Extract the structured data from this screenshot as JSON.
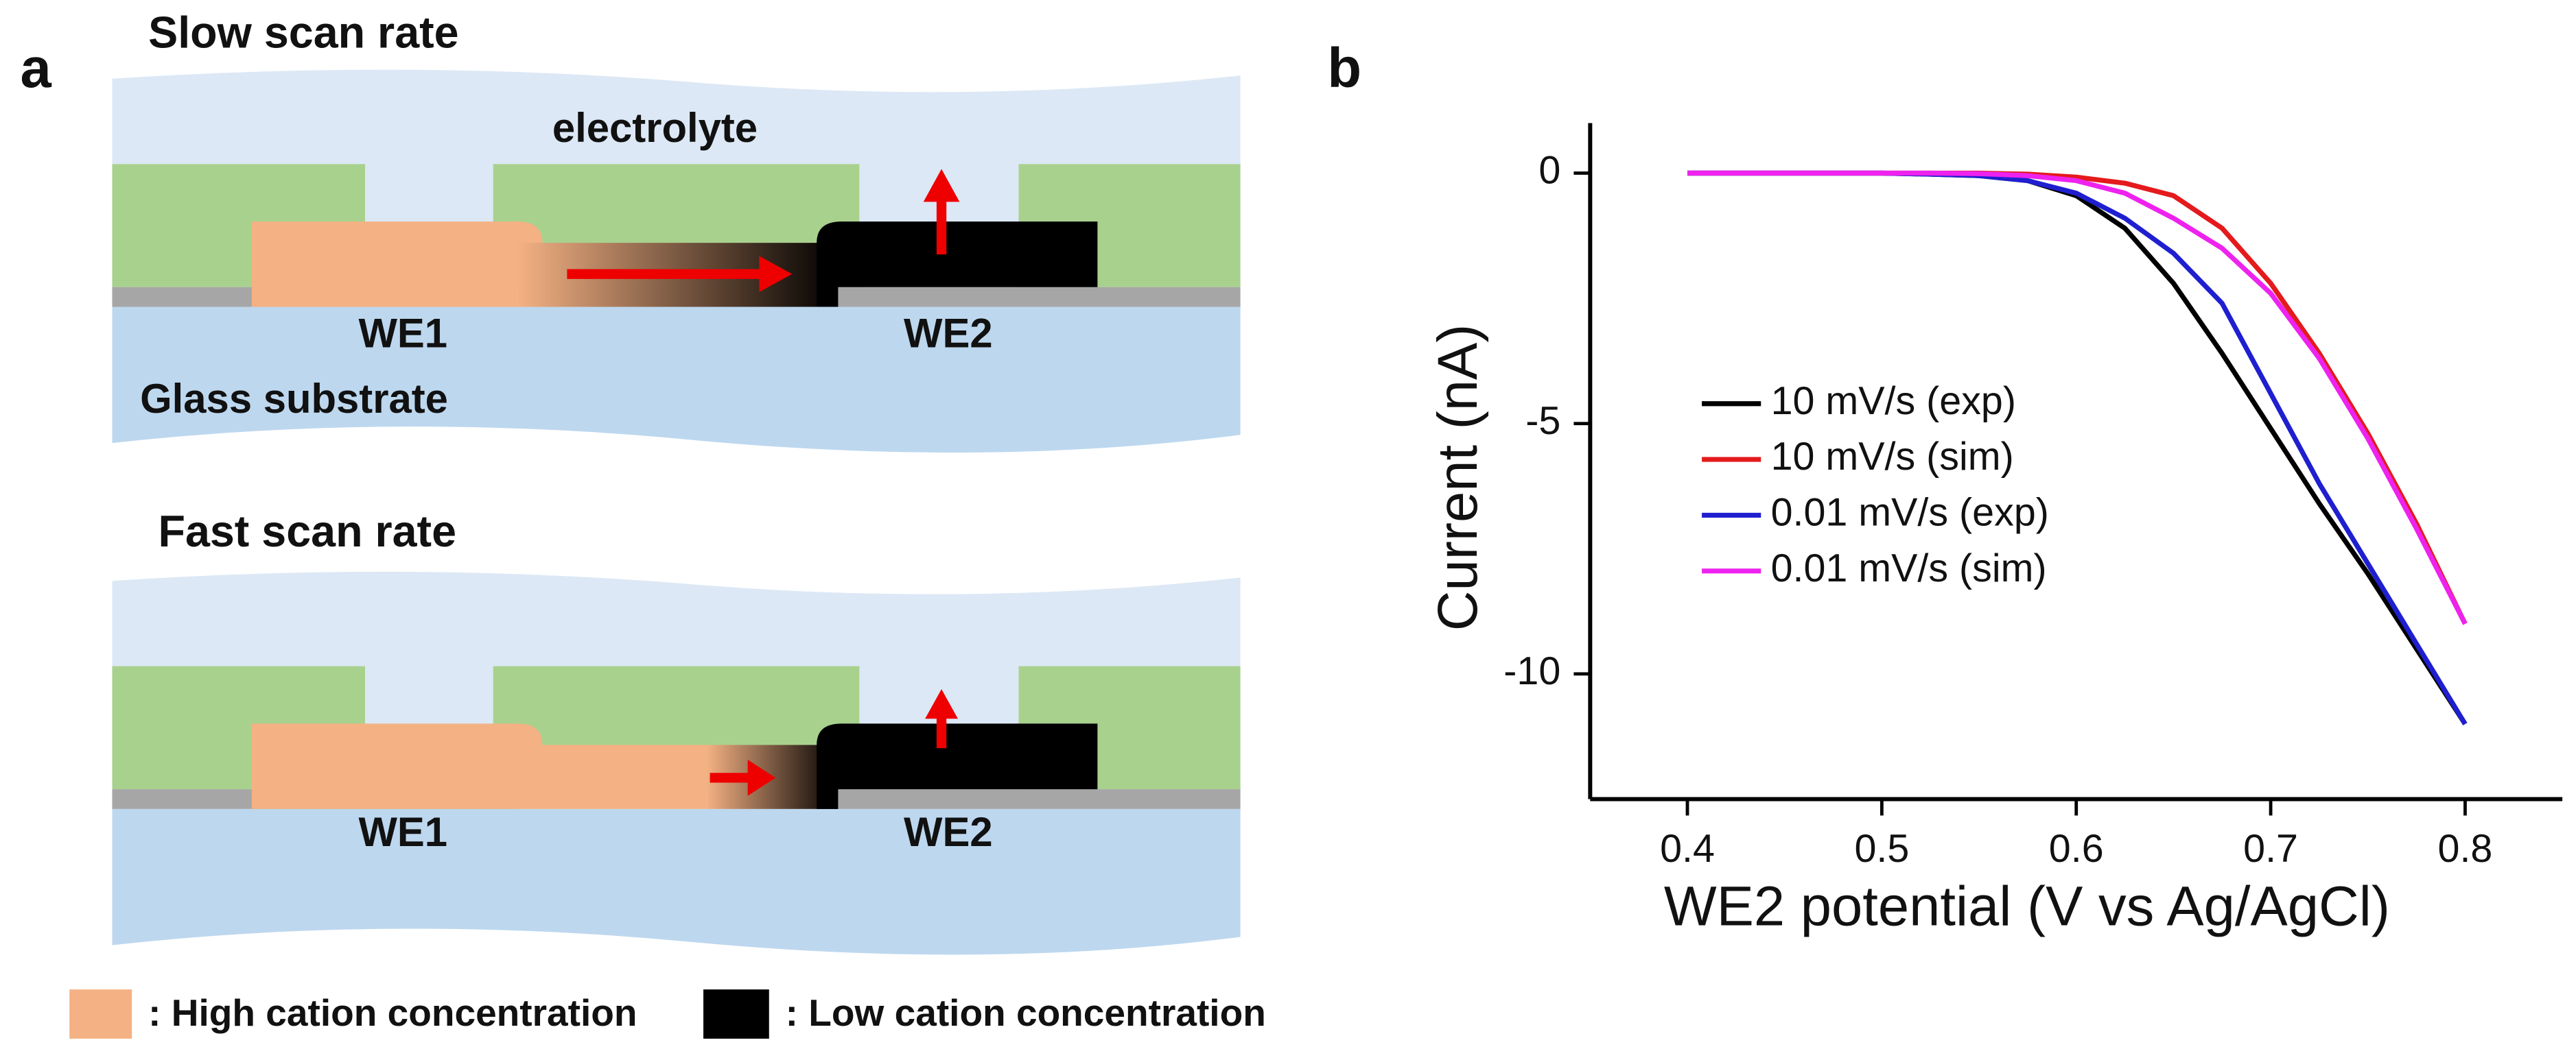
{
  "panel_a": {
    "label": "a",
    "top": {
      "title": "Slow scan rate",
      "electrolyte": "electrolyte",
      "we1": "WE1",
      "we2": "WE2",
      "substrate": "Glass substrate"
    },
    "bottom": {
      "title": "Fast scan rate",
      "we1": "WE1",
      "we2": "WE2"
    },
    "legend": [
      ": High cation concentration",
      ": Low cation concentration"
    ]
  },
  "chart_data": {
    "type": "line",
    "panel_label": "b",
    "x_label": "WE2 potential (V vs Ag/AgCl)",
    "y_label": "Current (nA)",
    "x": [
      0.4,
      0.425,
      0.45,
      0.475,
      0.5,
      0.525,
      0.55,
      0.575,
      0.6,
      0.625,
      0.65,
      0.675,
      0.7,
      0.725,
      0.75,
      0.775,
      0.8
    ],
    "series": [
      {
        "name": "10 mV/s (exp)",
        "color": "#000000",
        "values": [
          0,
          0,
          0,
          0,
          0,
          -0.02,
          -0.05,
          -0.15,
          -0.45,
          -1.1,
          -2.2,
          -3.6,
          -5.1,
          -6.6,
          -8.0,
          -9.5,
          -11.0
        ]
      },
      {
        "name": "10 mV/s (sim)",
        "color": "#e41a1c",
        "values": [
          0,
          0,
          0,
          0,
          0,
          0,
          0,
          -0.02,
          -0.08,
          -0.2,
          -0.45,
          -1.1,
          -2.2,
          -3.6,
          -5.2,
          -7.0,
          -9.0
        ]
      },
      {
        "name": "0.01 mV/s (exp)",
        "color": "#1f1fd0",
        "values": [
          0,
          0,
          0,
          0,
          0,
          -0.02,
          -0.05,
          -0.15,
          -0.4,
          -0.9,
          -1.6,
          -2.6,
          -4.4,
          -6.2,
          -7.8,
          -9.4,
          -11.0
        ]
      },
      {
        "name": "0.01 mV/s (sim)",
        "color": "#ee22ee",
        "values": [
          0,
          0,
          0,
          0,
          0,
          0,
          -0.01,
          -0.05,
          -0.15,
          -0.4,
          -0.9,
          -1.5,
          -2.4,
          -3.7,
          -5.3,
          -7.1,
          -9.0
        ]
      }
    ],
    "xlim": [
      0.35,
      0.85
    ],
    "xticks": [
      0.4,
      0.5,
      0.6,
      0.7,
      0.8
    ],
    "ylim": [
      -12.5,
      1
    ],
    "yticks": [
      0,
      -5,
      -10
    ],
    "legend": "center-left"
  }
}
